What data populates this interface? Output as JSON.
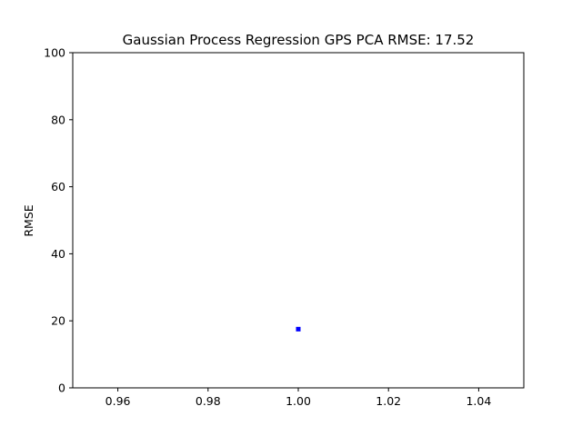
{
  "chart_data": {
    "type": "scatter",
    "title": "Gaussian Process Regression GPS PCA RMSE: 17.52",
    "xlabel": "",
    "ylabel": "RMSE",
    "xlim": [
      0.95,
      1.05
    ],
    "ylim": [
      0,
      100
    ],
    "xticks": [
      "0.96",
      "0.98",
      "1.00",
      "1.02",
      "1.04"
    ],
    "xtick_values": [
      0.96,
      0.98,
      1.0,
      1.02,
      1.04
    ],
    "yticks": [
      "0",
      "20",
      "40",
      "60",
      "80",
      "100"
    ],
    "ytick_values": [
      0,
      20,
      40,
      60,
      80,
      100
    ],
    "grid": false,
    "series": [
      {
        "points": [
          {
            "x": 1.0,
            "y": 17.52
          }
        ],
        "color": "#0000ff",
        "marker": "square"
      }
    ]
  }
}
